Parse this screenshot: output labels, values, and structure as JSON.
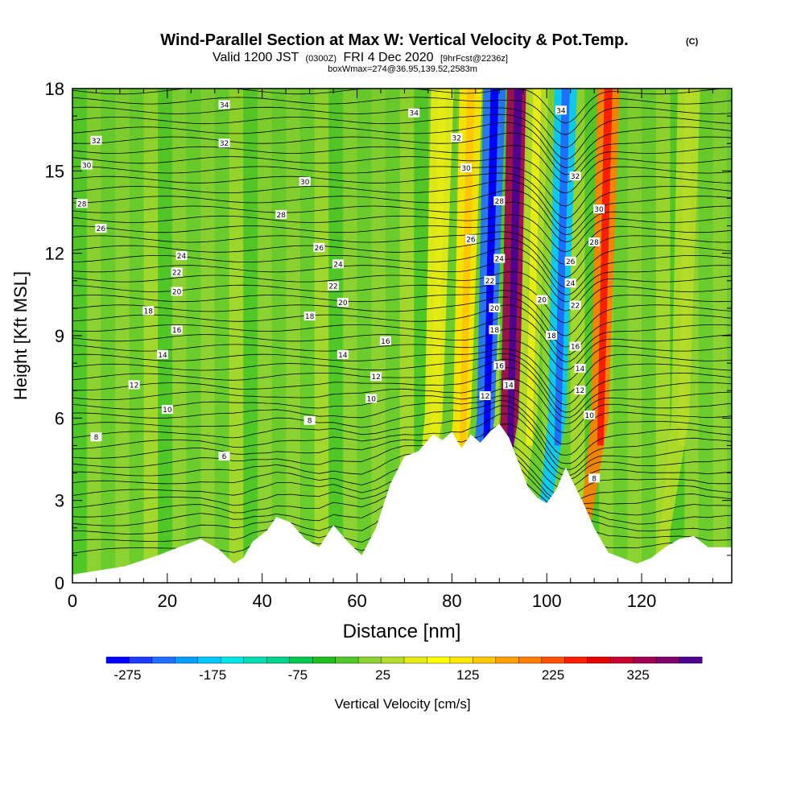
{
  "title": {
    "main": "Wind-Parallel Section at Max W: Vertical Velocity & Pot.Temp.",
    "copyright": "(C)",
    "valid_prefix": "Valid 1200 JST",
    "valid_utc": "(0300Z)",
    "valid_suffix": "FRI 4 Dec 2020",
    "forecast": "[9hrFcst@2236z]",
    "box": "boxWmax=274@36.95,139.52,2583m"
  },
  "colors": {
    "background": "#ffffff",
    "terrain": "#ffffff",
    "contour": "#000000",
    "colorbar": [
      "#0000ff",
      "#1e3cff",
      "#1e6eff",
      "#00a0ff",
      "#00c8ff",
      "#00e6e6",
      "#00dcb4",
      "#00d28c",
      "#00c850",
      "#1ebe1e",
      "#50c828",
      "#8cd232",
      "#b4dc28",
      "#e6eb14",
      "#ffff00",
      "#ffe600",
      "#ffc800",
      "#ffa000",
      "#ff7d00",
      "#ff5000",
      "#ff1e00",
      "#e60000",
      "#c8002d",
      "#a00050",
      "#80006e",
      "#500090"
    ]
  },
  "chart_data": {
    "type": "heatmap",
    "title": "Wind-Parallel Section at Max W: Vertical Velocity & Pot.Temp.",
    "xlabel": "Distance [nm]",
    "ylabel": "Height [Kft MSL]",
    "xlim": [
      0,
      139
    ],
    "ylim": [
      0,
      18
    ],
    "x_ticks": [
      "0",
      "20",
      "40",
      "60",
      "80",
      "100",
      "120"
    ],
    "y_ticks": [
      "0",
      "3",
      "6",
      "9",
      "12",
      "15",
      "18"
    ],
    "grid": false,
    "colorbar": {
      "label": "Vertical Velocity [cm/s]",
      "ticks": [
        "-275",
        "-175",
        "-75",
        "25",
        "125",
        "225",
        "325"
      ],
      "range": [
        -300,
        400
      ]
    },
    "terrain_height_kft": {
      "x": [
        0,
        11,
        18,
        27,
        31,
        34,
        36,
        38,
        41,
        43,
        46,
        49,
        52,
        55,
        58,
        61,
        64,
        67,
        70,
        73,
        76,
        78,
        80,
        82,
        84,
        86,
        88,
        90,
        92,
        94,
        96,
        98,
        100,
        102,
        104,
        106,
        108,
        110,
        113,
        116,
        119,
        122,
        125,
        128,
        131,
        134,
        139
      ],
      "y": [
        0.3,
        0.6,
        1.0,
        1.6,
        1.2,
        0.7,
        0.9,
        1.5,
        1.9,
        2.4,
        2.2,
        1.6,
        1.3,
        2.1,
        1.5,
        1.0,
        2.0,
        3.6,
        4.6,
        4.8,
        5.4,
        5.2,
        5.5,
        4.9,
        5.4,
        5.1,
        5.5,
        5.8,
        5.3,
        4.4,
        3.5,
        3.1,
        2.9,
        3.4,
        4.2,
        3.5,
        2.8,
        2.0,
        1.1,
        0.9,
        0.7,
        0.9,
        1.3,
        1.6,
        1.7,
        1.3,
        1.3
      ]
    },
    "updraft_bands": [
      {
        "x": 78,
        "w_cm_s": 60
      },
      {
        "x": 84,
        "w_cm_s": 110
      },
      {
        "x": 89,
        "w_cm_s": -230
      },
      {
        "x": 94,
        "w_cm_s": 330
      },
      {
        "x": 98,
        "w_cm_s": 40
      },
      {
        "x": 104,
        "w_cm_s": -180
      },
      {
        "x": 113,
        "w_cm_s": 210
      },
      {
        "x": 130,
        "w_cm_s": 30
      }
    ],
    "theta_contour_labels": [
      "6",
      "8",
      "10",
      "12",
      "14",
      "16",
      "18",
      "20",
      "22",
      "24",
      "26",
      "28",
      "30",
      "32",
      "34"
    ],
    "contour_label_positions": [
      {
        "text": "34",
        "x": 32,
        "y": 17.4
      },
      {
        "text": "32",
        "x": 5,
        "y": 16.1
      },
      {
        "text": "32",
        "x": 32,
        "y": 16.0
      },
      {
        "text": "30",
        "x": 3,
        "y": 15.2
      },
      {
        "text": "30",
        "x": 49,
        "y": 14.6
      },
      {
        "text": "28",
        "x": 2,
        "y": 13.8
      },
      {
        "text": "28",
        "x": 44,
        "y": 13.4
      },
      {
        "text": "26",
        "x": 6,
        "y": 12.9
      },
      {
        "text": "26",
        "x": 52,
        "y": 12.2
      },
      {
        "text": "24",
        "x": 23,
        "y": 11.9
      },
      {
        "text": "24",
        "x": 56,
        "y": 11.6
      },
      {
        "text": "22",
        "x": 22,
        "y": 11.3
      },
      {
        "text": "22",
        "x": 55,
        "y": 10.8
      },
      {
        "text": "20",
        "x": 22,
        "y": 10.6
      },
      {
        "text": "20",
        "x": 57,
        "y": 10.2
      },
      {
        "text": "18",
        "x": 16,
        "y": 9.9
      },
      {
        "text": "18",
        "x": 50,
        "y": 9.7
      },
      {
        "text": "16",
        "x": 22,
        "y": 9.2
      },
      {
        "text": "16",
        "x": 66,
        "y": 8.8
      },
      {
        "text": "14",
        "x": 19,
        "y": 8.3
      },
      {
        "text": "14",
        "x": 57,
        "y": 8.3
      },
      {
        "text": "12",
        "x": 13,
        "y": 7.2
      },
      {
        "text": "12",
        "x": 64,
        "y": 7.5
      },
      {
        "text": "10",
        "x": 20,
        "y": 6.3
      },
      {
        "text": "10",
        "x": 63,
        "y": 6.7
      },
      {
        "text": "8",
        "x": 5,
        "y": 5.3
      },
      {
        "text": "8",
        "x": 50,
        "y": 5.9
      },
      {
        "text": "6",
        "x": 32,
        "y": 4.6
      },
      {
        "text": "34",
        "x": 72,
        "y": 17.1
      },
      {
        "text": "34",
        "x": 103,
        "y": 17.2
      },
      {
        "text": "32",
        "x": 81,
        "y": 16.2
      },
      {
        "text": "30",
        "x": 83,
        "y": 15.1
      },
      {
        "text": "28",
        "x": 90,
        "y": 13.9
      },
      {
        "text": "26",
        "x": 84,
        "y": 12.5
      },
      {
        "text": "24",
        "x": 90,
        "y": 11.8
      },
      {
        "text": "22",
        "x": 88,
        "y": 11.0
      },
      {
        "text": "20",
        "x": 89,
        "y": 10.0
      },
      {
        "text": "18",
        "x": 89,
        "y": 9.2
      },
      {
        "text": "16",
        "x": 90,
        "y": 7.9
      },
      {
        "text": "14",
        "x": 92,
        "y": 7.2
      },
      {
        "text": "12",
        "x": 87,
        "y": 6.8
      },
      {
        "text": "32",
        "x": 106,
        "y": 14.8
      },
      {
        "text": "30",
        "x": 111,
        "y": 13.6
      },
      {
        "text": "28",
        "x": 110,
        "y": 12.4
      },
      {
        "text": "26",
        "x": 105,
        "y": 11.7
      },
      {
        "text": "24",
        "x": 105,
        "y": 10.9
      },
      {
        "text": "22",
        "x": 106,
        "y": 10.1
      },
      {
        "text": "20",
        "x": 99,
        "y": 10.3
      },
      {
        "text": "18",
        "x": 101,
        "y": 9.0
      },
      {
        "text": "16",
        "x": 106,
        "y": 8.6
      },
      {
        "text": "14",
        "x": 107,
        "y": 7.8
      },
      {
        "text": "12",
        "x": 107,
        "y": 7.0
      },
      {
        "text": "10",
        "x": 109,
        "y": 6.1
      },
      {
        "text": "8",
        "x": 110,
        "y": 3.8
      }
    ]
  }
}
